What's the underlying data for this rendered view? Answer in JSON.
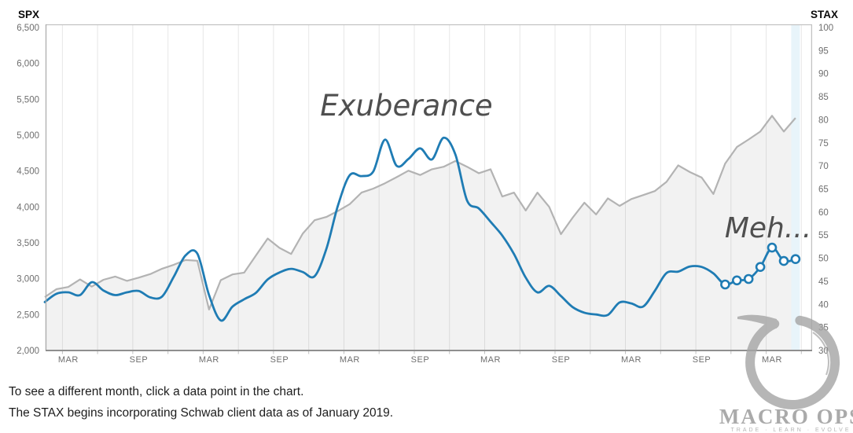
{
  "left_axis": {
    "title": "SPX",
    "tick_labels": [
      "6,500",
      "6,000",
      "5,500",
      "5,000",
      "4,500",
      "4,000",
      "3,500",
      "3,000",
      "2,500",
      "2,000"
    ]
  },
  "right_axis": {
    "title": "STAX",
    "tick_labels": [
      "100",
      "95",
      "90",
      "85",
      "80",
      "75",
      "70",
      "65",
      "60",
      "55",
      "50",
      "45",
      "40",
      "35",
      "30"
    ]
  },
  "x_axis": {
    "tick_labels": [
      "MAR",
      "SEP",
      "MAR",
      "SEP",
      "MAR",
      "SEP",
      "MAR",
      "SEP",
      "MAR",
      "SEP",
      "MAR"
    ],
    "tick_month_indices": [
      2,
      8,
      14,
      20,
      26,
      32,
      38,
      44,
      50,
      56,
      62
    ]
  },
  "annotations": {
    "exuberance": "Exuberance",
    "meh": "Meh..."
  },
  "footer": {
    "line1": "To see a different month, click a data point in the chart.",
    "line2": "The STAX begins incorporating Schwab client data as of January 2019."
  },
  "logo": {
    "name": "MACRO OPS",
    "tagline": "TRADE · LEARN · EVOLVE"
  },
  "colors": {
    "stax_blue": "#1f7cb4",
    "spx_gray": "#b3b3b3",
    "area_fill": "rgba(0,0,0,0.05)",
    "gridline": "#e7e7e7",
    "highlight_band": "#e7f3fa",
    "axis_border": "#c2c2c2",
    "bottom_axis": "#8f8f8f"
  },
  "chart_data": {
    "type": "line",
    "title": "",
    "x_start": "Jan 2019",
    "x_end": "May 2024",
    "x_interval": "monthly",
    "grid": "vertical-quarterly",
    "legend": "none",
    "left_axis_range": [
      2000,
      6500
    ],
    "right_axis_range": [
      30,
      100
    ],
    "selected_index": 64,
    "series": [
      {
        "name": "SPX",
        "axis": "left",
        "style": "area-line",
        "color": "#b3b3b3",
        "values": [
          2745,
          2855,
          2885,
          2990,
          2890,
          2985,
          3030,
          2970,
          3015,
          3065,
          3140,
          3195,
          3260,
          3250,
          2570,
          2980,
          3060,
          3085,
          3325,
          3560,
          3430,
          3345,
          3630,
          3815,
          3860,
          3945,
          4040,
          4200,
          4255,
          4330,
          4415,
          4505,
          4445,
          4525,
          4560,
          4640,
          4560,
          4470,
          4525,
          4145,
          4200,
          3950,
          4200,
          4000,
          3620,
          3850,
          4060,
          3895,
          4120,
          4015,
          4110,
          4165,
          4220,
          4350,
          4580,
          4485,
          4410,
          4180,
          4605,
          4835,
          4940,
          5050,
          5270,
          5050,
          5240
        ]
      },
      {
        "name": "STAX",
        "axis": "right",
        "style": "smooth-line",
        "color": "#1f7cb4",
        "marker_from_index": 58,
        "values": [
          40.5,
          42.3,
          42.6,
          42.0,
          44.8,
          43.0,
          42.0,
          42.6,
          42.9,
          41.5,
          41.7,
          46.0,
          50.6,
          51.0,
          42.0,
          36.5,
          39.5,
          41.1,
          42.5,
          45.4,
          46.9,
          47.7,
          47.0,
          46.1,
          52.0,
          61.5,
          68.0,
          67.8,
          68.8,
          75.7,
          70.0,
          71.5,
          73.8,
          71.4,
          76.1,
          72.5,
          62.5,
          60.8,
          57.9,
          54.9,
          50.9,
          45.8,
          42.6,
          44.0,
          41.8,
          39.4,
          38.2,
          37.8,
          37.7,
          40.4,
          40.2,
          39.5,
          42.9,
          46.8,
          47.1,
          48.2,
          48.1,
          46.7,
          44.3,
          45.2,
          45.5,
          48.1,
          52.3,
          49.4,
          49.8
        ]
      }
    ]
  }
}
